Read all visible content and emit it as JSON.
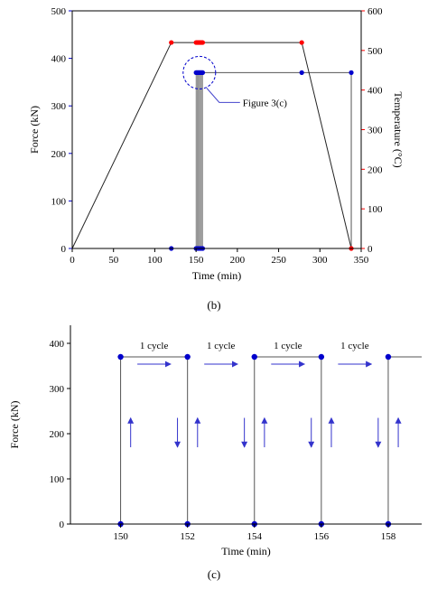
{
  "chart_data": [
    {
      "panel": "(b)",
      "type": "line",
      "xlabel": "Time (min)",
      "ylabel": "Force (kN)",
      "y2label": "Temperature (°C)",
      "xlim": [
        0,
        350
      ],
      "ylim": [
        0,
        500
      ],
      "y2lim": [
        0,
        600
      ],
      "xticks": [
        0,
        50,
        100,
        150,
        200,
        250,
        300,
        350
      ],
      "yticks": [
        0,
        100,
        200,
        300,
        400,
        500
      ],
      "y2ticks": [
        0,
        100,
        200,
        300,
        400,
        500,
        600
      ],
      "grid": false,
      "colors": {
        "force": "#0000cc",
        "temperature": "#ff0000",
        "line": "#555555"
      },
      "series": [
        {
          "axis": "temperature",
          "x": [
            0,
            120,
            278,
            338
          ],
          "y": [
            0,
            520,
            520,
            0
          ],
          "markers": {
            "x": [
              120,
              150,
              151,
              152,
              153,
              154,
              155,
              156,
              157,
              158,
              278,
              338
            ],
            "y": [
              520,
              520,
              520,
              520,
              520,
              520,
              520,
              520,
              520,
              520,
              520,
              0
            ]
          }
        },
        {
          "axis": "force",
          "hold_start": 158,
          "x": [
            150,
            150,
            152,
            152,
            154,
            154,
            156,
            156,
            158,
            158,
            278,
            338,
            338
          ],
          "y": [
            0,
            370,
            370,
            0,
            0,
            370,
            370,
            0,
            0,
            370,
            370,
            370,
            0
          ],
          "markers": {
            "x": [
              120,
              150,
              152,
              154,
              156,
              158,
              278,
              338,
              150,
              151,
              152,
              153,
              154,
              155,
              156,
              157,
              158
            ],
            "y": [
              0,
              0,
              0,
              0,
              0,
              0,
              370,
              370,
              370,
              370,
              370,
              370,
              370,
              370,
              370,
              370,
              370
            ]
          }
        }
      ],
      "annotation": {
        "text": "Figure 3(c)",
        "x": 154,
        "y": 370
      }
    },
    {
      "panel": "(c)",
      "type": "line",
      "xlabel": "Time (min)",
      "ylabel": "Force (kN)",
      "xlim": [
        148.5,
        159
      ],
      "ylim": [
        0,
        440
      ],
      "xticks": [
        150,
        152,
        154,
        156,
        158
      ],
      "yticks": [
        0,
        100,
        200,
        300,
        400
      ],
      "grid": false,
      "colors": {
        "force": "#0000cc",
        "line": "#555555",
        "arrow": "#3333cc"
      },
      "series": [
        {
          "axis": "force",
          "x": [
            150,
            150,
            152,
            152,
            154,
            154,
            156,
            156,
            158,
            158,
            159
          ],
          "y": [
            0,
            370,
            370,
            0,
            0,
            370,
            370,
            0,
            0,
            370,
            370
          ],
          "markers": {
            "x": [
              150,
              152,
              154,
              156,
              158,
              150,
              152,
              154,
              156,
              158
            ],
            "y": [
              370,
              370,
              370,
              370,
              370,
              0,
              0,
              0,
              0,
              0
            ]
          }
        }
      ],
      "cycle_labels": [
        {
          "text": "1 cycle",
          "x": 151
        },
        {
          "text": "1 cycle",
          "x": 153
        },
        {
          "text": "1 cycle",
          "x": 155
        },
        {
          "text": "1 cycle",
          "x": 157
        }
      ],
      "arrows": [
        {
          "dir": "right",
          "x1": 150.5,
          "x2": 151.5,
          "y": 354
        },
        {
          "dir": "right",
          "x1": 152.5,
          "x2": 153.5,
          "y": 354
        },
        {
          "dir": "right",
          "x1": 154.5,
          "x2": 155.5,
          "y": 354
        },
        {
          "dir": "right",
          "x1": 156.5,
          "x2": 157.5,
          "y": 354
        },
        {
          "dir": "up",
          "x": 150.3,
          "y1": 170,
          "y2": 235
        },
        {
          "dir": "down",
          "x": 151.7,
          "y1": 235,
          "y2": 170
        },
        {
          "dir": "up",
          "x": 152.3,
          "y1": 170,
          "y2": 235
        },
        {
          "dir": "down",
          "x": 153.7,
          "y1": 235,
          "y2": 170
        },
        {
          "dir": "up",
          "x": 154.3,
          "y1": 170,
          "y2": 235
        },
        {
          "dir": "down",
          "x": 155.7,
          "y1": 235,
          "y2": 170
        },
        {
          "dir": "up",
          "x": 156.3,
          "y1": 170,
          "y2": 235
        },
        {
          "dir": "down",
          "x": 157.7,
          "y1": 235,
          "y2": 170
        },
        {
          "dir": "up",
          "x": 158.3,
          "y1": 170,
          "y2": 235
        }
      ]
    }
  ],
  "captions": {
    "b": "(b)",
    "c": "(c)"
  }
}
